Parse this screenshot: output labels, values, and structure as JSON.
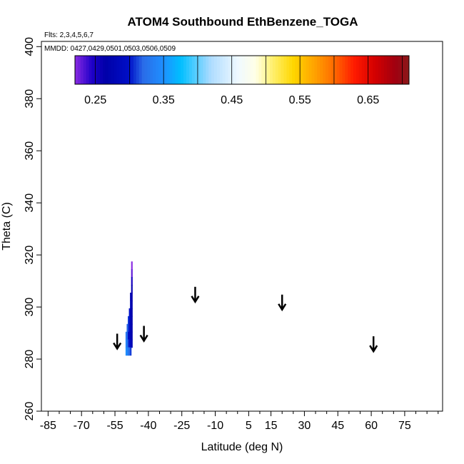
{
  "chart_data": {
    "type": "heatmap",
    "title": "ATOM4 Southbound EthBenzene_TOGA",
    "subtitle_flights": "Flts: 2,3,4,5,6,7",
    "subtitle_dates": "MMDD: 0427,0429,0501,0503,0506,0509",
    "xlabel": "Latitude (deg N)",
    "ylabel": "Theta (C)",
    "xlim": [
      -88,
      92
    ],
    "ylim": [
      260,
      402
    ],
    "x_major_ticks": [
      -85,
      -70,
      -55,
      -40,
      -25,
      -10,
      5,
      15,
      30,
      45,
      60,
      75
    ],
    "x_tick_labels": [
      "-85",
      "-70",
      "-55",
      "-40",
      "-25",
      "-10",
      "5",
      "15",
      "30",
      "45",
      "60",
      "75"
    ],
    "x_minor_ticks": [
      -80,
      -75,
      -65,
      -60,
      -50,
      -45,
      -35,
      -30,
      -20,
      -15,
      -5,
      0,
      10,
      20,
      25,
      35,
      40,
      50,
      55,
      65,
      70,
      80,
      85,
      90
    ],
    "y_ticks": [
      260,
      280,
      300,
      320,
      340,
      360,
      380,
      400
    ],
    "y_tick_labels": [
      "260",
      "280",
      "300",
      "320",
      "340",
      "360",
      "380",
      "400"
    ],
    "colorbar": {
      "range": [
        0.22,
        0.71
      ],
      "tick_values": [
        0.25,
        0.35,
        0.45,
        0.55,
        0.65
      ],
      "tick_labels": [
        "0.25",
        "0.35",
        "0.45",
        "0.55",
        "0.65"
      ],
      "divider_values": [
        0.25,
        0.3,
        0.35,
        0.4,
        0.45,
        0.5,
        0.55,
        0.6,
        0.65,
        0.7
      ],
      "color_stops": [
        {
          "v": 0.22,
          "color": "#8A2BE2"
        },
        {
          "v": 0.245,
          "color": "#1E00C8"
        },
        {
          "v": 0.265,
          "color": "#0000A8"
        },
        {
          "v": 0.3,
          "color": "#0010C8"
        },
        {
          "v": 0.32,
          "color": "#2A6CE8"
        },
        {
          "v": 0.35,
          "color": "#1E90FF"
        },
        {
          "v": 0.375,
          "color": "#00BFFF"
        },
        {
          "v": 0.42,
          "color": "#B0DCFF"
        },
        {
          "v": 0.46,
          "color": "#F0FAFF"
        },
        {
          "v": 0.485,
          "color": "#FFFFE6"
        },
        {
          "v": 0.51,
          "color": "#FFF06E"
        },
        {
          "v": 0.54,
          "color": "#FFD700"
        },
        {
          "v": 0.57,
          "color": "#FFA500"
        },
        {
          "v": 0.6,
          "color": "#FF6A00"
        },
        {
          "v": 0.63,
          "color": "#FF1A00"
        },
        {
          "v": 0.66,
          "color": "#D40000"
        },
        {
          "v": 0.69,
          "color": "#A00010"
        },
        {
          "v": 0.71,
          "color": "#8B1A1A"
        }
      ]
    },
    "cells": [
      {
        "lat": -47.5,
        "theta": 316,
        "value": 0.22
      },
      {
        "lat": -47.5,
        "theta": 313,
        "value": 0.23
      },
      {
        "lat": -47.5,
        "theta": 310,
        "value": 0.25
      },
      {
        "lat": -47.5,
        "theta": 307,
        "value": 0.26
      },
      {
        "lat": -48.0,
        "theta": 304,
        "value": 0.27
      },
      {
        "lat": -47.5,
        "theta": 304,
        "value": 0.26
      },
      {
        "lat": -48.0,
        "theta": 301,
        "value": 0.28
      },
      {
        "lat": -47.5,
        "theta": 301,
        "value": 0.27
      },
      {
        "lat": -48.5,
        "theta": 298,
        "value": 0.3
      },
      {
        "lat": -48.0,
        "theta": 298,
        "value": 0.28
      },
      {
        "lat": -47.5,
        "theta": 298,
        "value": 0.27
      },
      {
        "lat": -49.0,
        "theta": 295,
        "value": 0.31
      },
      {
        "lat": -48.5,
        "theta": 295,
        "value": 0.3
      },
      {
        "lat": -48.0,
        "theta": 295,
        "value": 0.28
      },
      {
        "lat": -47.5,
        "theta": 295,
        "value": 0.27
      },
      {
        "lat": -49.5,
        "theta": 292,
        "value": 0.32
      },
      {
        "lat": -49.0,
        "theta": 292,
        "value": 0.31
      },
      {
        "lat": -48.5,
        "theta": 292,
        "value": 0.3
      },
      {
        "lat": -48.0,
        "theta": 292,
        "value": 0.28
      },
      {
        "lat": -47.5,
        "theta": 292,
        "value": 0.27
      },
      {
        "lat": -50.0,
        "theta": 289,
        "value": 0.33
      },
      {
        "lat": -49.5,
        "theta": 289,
        "value": 0.32
      },
      {
        "lat": -49.0,
        "theta": 289,
        "value": 0.3
      },
      {
        "lat": -48.5,
        "theta": 289,
        "value": 0.29
      },
      {
        "lat": -48.0,
        "theta": 289,
        "value": 0.28
      },
      {
        "lat": -47.5,
        "theta": 289,
        "value": 0.27
      },
      {
        "lat": -50.0,
        "theta": 286,
        "value": 0.34
      },
      {
        "lat": -49.5,
        "theta": 286,
        "value": 0.33
      },
      {
        "lat": -49.0,
        "theta": 286,
        "value": 0.31
      },
      {
        "lat": -48.5,
        "theta": 286,
        "value": 0.3
      },
      {
        "lat": -48.0,
        "theta": 286,
        "value": 0.29
      },
      {
        "lat": -47.5,
        "theta": 286,
        "value": 0.28
      },
      {
        "lat": -50.0,
        "theta": 283,
        "value": 0.35
      },
      {
        "lat": -49.5,
        "theta": 283,
        "value": 0.34
      },
      {
        "lat": -49.0,
        "theta": 283,
        "value": 0.33
      },
      {
        "lat": -48.5,
        "theta": 283,
        "value": 0.32
      },
      {
        "lat": -48.0,
        "theta": 283,
        "value": 0.31
      }
    ],
    "arrows": [
      {
        "lat": -54,
        "theta": 284
      },
      {
        "lat": -42,
        "theta": 287
      },
      {
        "lat": -19,
        "theta": 302
      },
      {
        "lat": 20,
        "theta": 299
      },
      {
        "lat": 61,
        "theta": 283
      }
    ]
  }
}
